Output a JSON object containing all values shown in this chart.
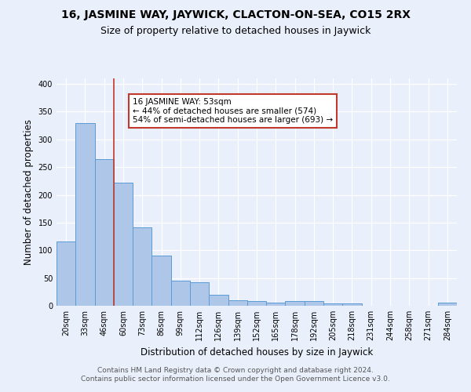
{
  "title": "16, JASMINE WAY, JAYWICK, CLACTON-ON-SEA, CO15 2RX",
  "subtitle": "Size of property relative to detached houses in Jaywick",
  "xlabel": "Distribution of detached houses by size in Jaywick",
  "ylabel": "Number of detached properties",
  "categories": [
    "20sqm",
    "33sqm",
    "46sqm",
    "60sqm",
    "73sqm",
    "86sqm",
    "99sqm",
    "112sqm",
    "126sqm",
    "139sqm",
    "152sqm",
    "165sqm",
    "178sqm",
    "192sqm",
    "205sqm",
    "218sqm",
    "231sqm",
    "244sqm",
    "258sqm",
    "271sqm",
    "284sqm"
  ],
  "values": [
    116,
    330,
    265,
    222,
    142,
    90,
    45,
    42,
    20,
    10,
    8,
    5,
    8,
    9,
    4,
    4,
    0,
    0,
    0,
    0,
    5
  ],
  "bar_color": "#aec6e8",
  "bar_edge_color": "#5b9bd5",
  "bg_color": "#eaf0fb",
  "grid_color": "#ffffff",
  "vline_x": 2.5,
  "vline_color": "#c0392b",
  "annotation_text": "16 JASMINE WAY: 53sqm\n← 44% of detached houses are smaller (574)\n54% of semi-detached houses are larger (693) →",
  "annotation_box_color": "#ffffff",
  "annotation_box_edge": "#c0392b",
  "footer_line1": "Contains HM Land Registry data © Crown copyright and database right 2024.",
  "footer_line2": "Contains public sector information licensed under the Open Government Licence v3.0.",
  "ylim": [
    0,
    410
  ],
  "title_fontsize": 10,
  "subtitle_fontsize": 9,
  "xlabel_fontsize": 8.5,
  "ylabel_fontsize": 8.5,
  "tick_fontsize": 7,
  "annotation_fontsize": 7.5,
  "footer_fontsize": 6.5
}
